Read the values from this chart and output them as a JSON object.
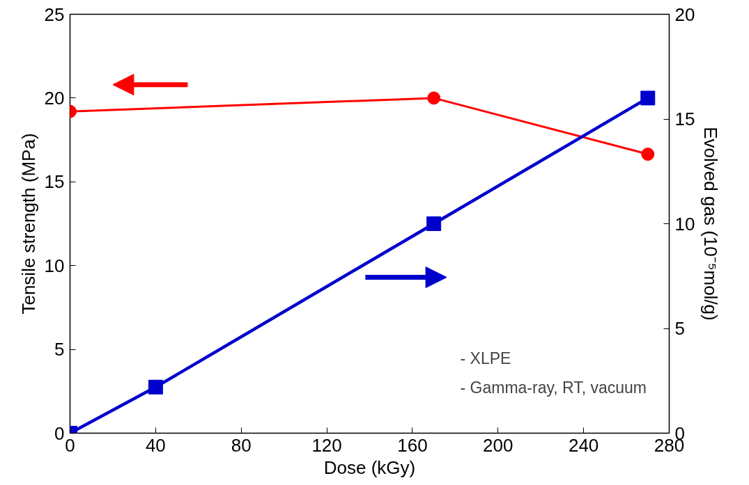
{
  "chart_data": {
    "type": "line",
    "xlabel": "Dose (kGy)",
    "ylabel": "Tensile strength (MPa)",
    "y2label": "Evolved gas (10⁻⁵mol/g)",
    "xlim": [
      0,
      280
    ],
    "xticks": [
      0,
      40,
      80,
      120,
      160,
      200,
      240,
      280
    ],
    "ylim": [
      0,
      25
    ],
    "yticks": [
      0,
      5,
      10,
      15,
      20,
      25
    ],
    "y2lim": [
      0,
      20
    ],
    "y2ticks": [
      0,
      5,
      10,
      15,
      20
    ],
    "grid": false,
    "line_style": "solid",
    "annotations": [
      "- XLPE",
      "- Gamma-ray, RT, vacuum"
    ],
    "series": [
      {
        "color": "#ff0000",
        "marker": "circle",
        "x": [
          0,
          170,
          270
        ],
        "values": [
          19.2,
          20.0,
          16.65
        ]
      },
      {
        "color": "#0000cc",
        "marker": "square",
        "axis": "y2",
        "x": [
          0,
          40,
          170,
          270
        ],
        "values": [
          0,
          2.2,
          10.0,
          16.0
        ]
      }
    ]
  }
}
